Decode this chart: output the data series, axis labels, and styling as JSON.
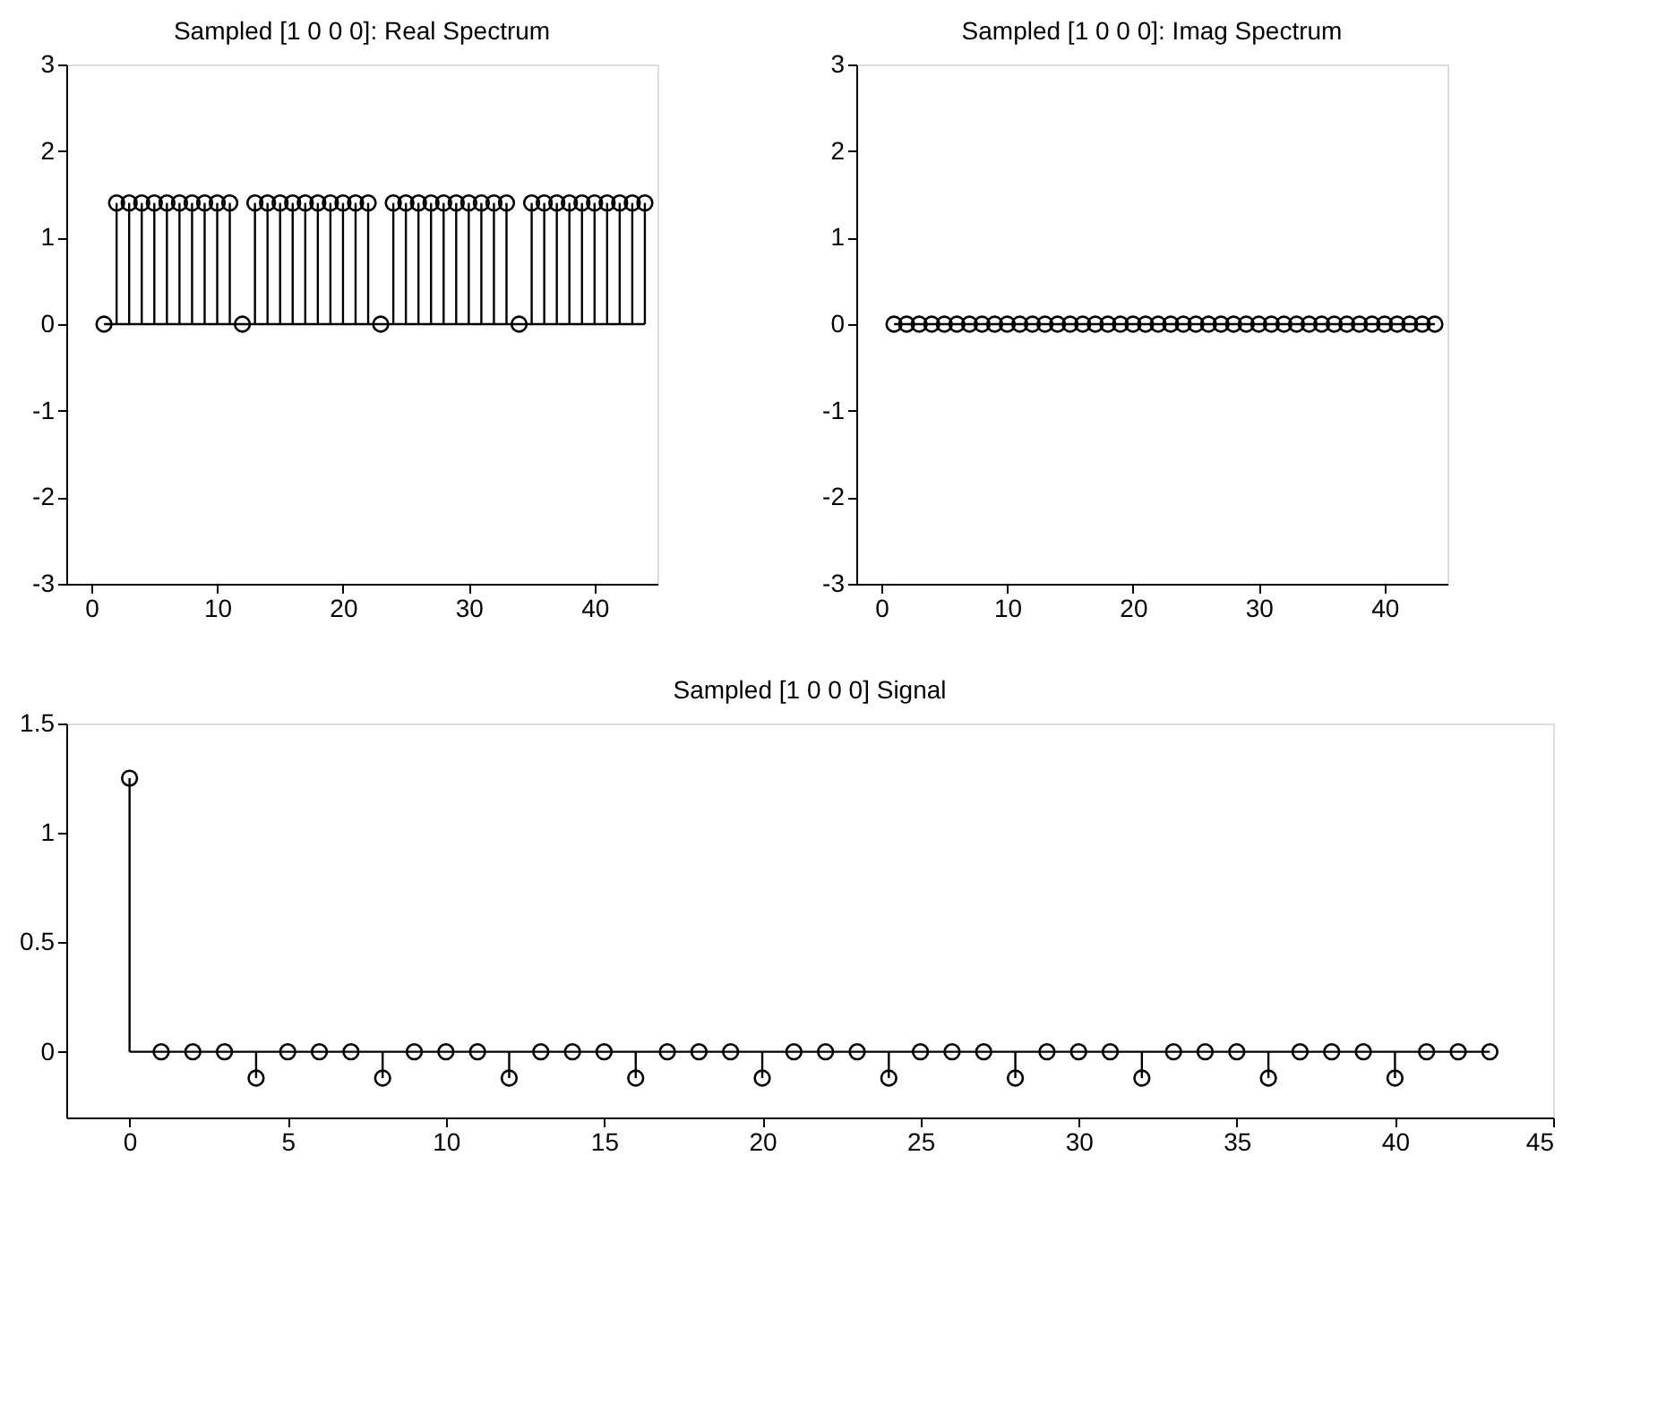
{
  "chart_data": [
    {
      "type": "lollipop",
      "title": "Sampled [1 0 0 0]: Real Spectrum",
      "x": [
        1,
        2,
        3,
        4,
        5,
        6,
        7,
        8,
        9,
        10,
        11,
        12,
        13,
        14,
        15,
        16,
        17,
        18,
        19,
        20,
        21,
        22,
        23,
        24,
        25,
        26,
        27,
        28,
        29,
        30,
        31,
        32,
        33,
        34,
        35,
        36,
        37,
        38,
        39,
        40,
        41,
        42,
        43,
        44
      ],
      "series": [
        {
          "color": "#000000",
          "values": [
            0,
            1.4,
            1.4,
            1.4,
            1.4,
            1.4,
            1.4,
            1.4,
            1.4,
            1.4,
            1.4,
            0,
            1.4,
            1.4,
            1.4,
            1.4,
            1.4,
            1.4,
            1.4,
            1.4,
            1.4,
            1.4,
            0,
            1.4,
            1.4,
            1.4,
            1.4,
            1.4,
            1.4,
            1.4,
            1.4,
            1.4,
            1.4,
            0,
            1.4,
            1.4,
            1.4,
            1.4,
            1.4,
            1.4,
            1.4,
            1.4,
            1.4,
            1.4
          ]
        }
      ],
      "xlim": [
        -2,
        45
      ],
      "xticks": [
        0,
        10,
        20,
        30,
        40
      ],
      "ylim": [
        -3,
        3
      ],
      "yticks": [
        -3,
        -2,
        -1,
        0,
        1,
        2,
        3
      ],
      "marker": "circle"
    },
    {
      "type": "lollipop",
      "title": "Sampled [1 0 0 0]: Imag Spectrum",
      "x": [
        1,
        2,
        3,
        4,
        5,
        6,
        7,
        8,
        9,
        10,
        11,
        12,
        13,
        14,
        15,
        16,
        17,
        18,
        19,
        20,
        21,
        22,
        23,
        24,
        25,
        26,
        27,
        28,
        29,
        30,
        31,
        32,
        33,
        34,
        35,
        36,
        37,
        38,
        39,
        40,
        41,
        42,
        43,
        44
      ],
      "series": [
        {
          "color": "#000000",
          "values": [
            0,
            0,
            0,
            0,
            0,
            0,
            0,
            0,
            0,
            0,
            0,
            0,
            0,
            0,
            0,
            0,
            0,
            0,
            0,
            0,
            0,
            0,
            0,
            0,
            0,
            0,
            0,
            0,
            0,
            0,
            0,
            0,
            0,
            0,
            0,
            0,
            0,
            0,
            0,
            0,
            0,
            0,
            0,
            0
          ]
        }
      ],
      "xlim": [
        -2,
        45
      ],
      "xticks": [
        0,
        10,
        20,
        30,
        40
      ],
      "ylim": [
        -3,
        3
      ],
      "yticks": [
        -3,
        -2,
        -1,
        0,
        1,
        2,
        3
      ],
      "marker": "circle"
    },
    {
      "type": "lollipop",
      "title": "Sampled [1 0 0 0] Signal",
      "x": [
        0,
        1,
        2,
        3,
        4,
        5,
        6,
        7,
        8,
        9,
        10,
        11,
        12,
        13,
        14,
        15,
        16,
        17,
        18,
        19,
        20,
        21,
        22,
        23,
        24,
        25,
        26,
        27,
        28,
        29,
        30,
        31,
        32,
        33,
        34,
        35,
        36,
        37,
        38,
        39,
        40,
        41,
        42,
        43
      ],
      "series": [
        {
          "color": "#000000",
          "values": [
            1.25,
            0,
            0,
            0,
            -0.12,
            0,
            0,
            0,
            -0.12,
            0,
            0,
            0,
            -0.12,
            0,
            0,
            0,
            -0.12,
            0,
            0,
            0,
            -0.12,
            0,
            0,
            0,
            -0.12,
            0,
            0,
            0,
            -0.12,
            0,
            0,
            0,
            -0.12,
            0,
            0,
            0,
            -0.12,
            0,
            0,
            0,
            -0.12,
            0,
            0,
            0
          ]
        }
      ],
      "xlim": [
        -2,
        45
      ],
      "xticks": [
        0,
        5,
        10,
        15,
        20,
        25,
        30,
        35,
        40,
        45
      ],
      "ylim": [
        -0.3,
        1.5
      ],
      "yticks": [
        0,
        0.5,
        1,
        1.5
      ],
      "marker": "circle"
    }
  ]
}
